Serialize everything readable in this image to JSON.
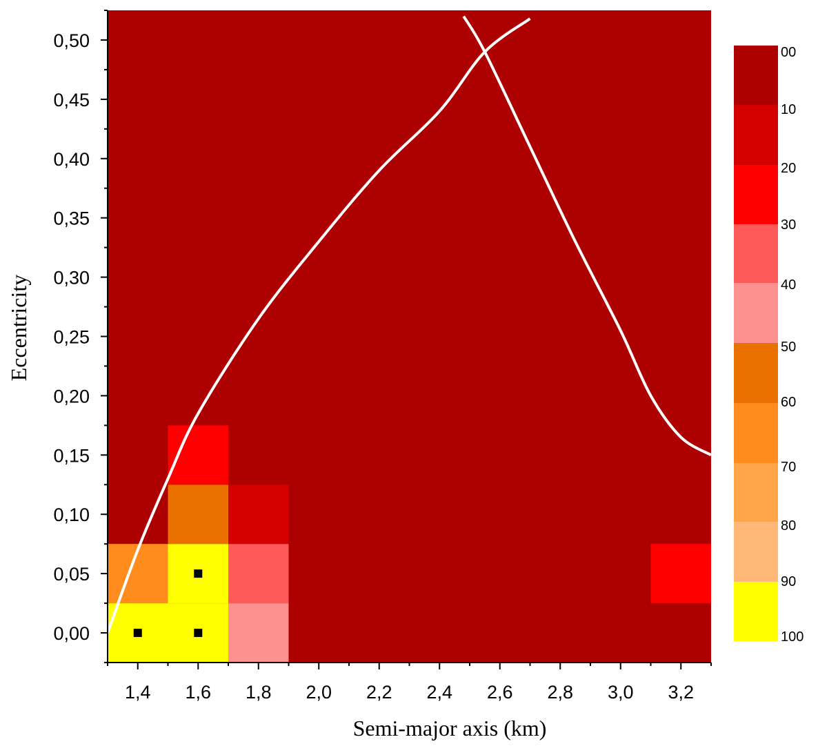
{
  "chart_data": {
    "type": "heatmap",
    "title": "",
    "xlabel": "Semi-major  axis  (km)",
    "ylabel": "Eccentricity",
    "xlim": [
      1.3,
      3.3
    ],
    "ylim": [
      -0.025,
      0.525
    ],
    "x_ticks": [
      1.4,
      1.6,
      1.8,
      2.0,
      2.2,
      2.4,
      2.6,
      2.8,
      3.0,
      3.2
    ],
    "x_tick_labels": [
      "1,4",
      "1,6",
      "1,8",
      "2,0",
      "2,2",
      "2,4",
      "2,6",
      "2,8",
      "3,0",
      "3,2"
    ],
    "y_ticks": [
      0.0,
      0.05,
      0.1,
      0.15,
      0.2,
      0.25,
      0.3,
      0.35,
      0.4,
      0.45,
      0.5
    ],
    "y_tick_labels": [
      "0,00",
      "0,05",
      "0,10",
      "0,15",
      "0,20",
      "0,25",
      "0,30",
      "0,35",
      "0,40",
      "0,45",
      "0,50"
    ],
    "cell_size": {
      "dx": 0.2,
      "de": 0.05
    },
    "background_value": 5,
    "cells": [
      {
        "x": 1.4,
        "e": 0.0,
        "value": 95
      },
      {
        "x": 1.6,
        "e": 0.0,
        "value": 95
      },
      {
        "x": 1.8,
        "e": 0.0,
        "value": 45
      },
      {
        "x": 1.4,
        "e": 0.05,
        "value": 65
      },
      {
        "x": 1.6,
        "e": 0.05,
        "value": 95
      },
      {
        "x": 1.8,
        "e": 0.05,
        "value": 35
      },
      {
        "x": 1.6,
        "e": 0.1,
        "value": 55
      },
      {
        "x": 1.8,
        "e": 0.1,
        "value": 15
      },
      {
        "x": 1.6,
        "e": 0.15,
        "value": 25
      },
      {
        "x": 3.2,
        "e": 0.05,
        "value": 25
      }
    ],
    "markers": [
      {
        "x": 1.4,
        "e": 0.0
      },
      {
        "x": 1.6,
        "e": 0.0
      },
      {
        "x": 1.6,
        "e": 0.05
      }
    ],
    "curves": [
      {
        "color": "#ffffff",
        "points": [
          [
            1.3,
            0.0
          ],
          [
            1.4,
            0.07
          ],
          [
            1.5,
            0.13
          ],
          [
            1.6,
            0.185
          ],
          [
            1.8,
            0.265
          ],
          [
            2.0,
            0.33
          ],
          [
            2.2,
            0.39
          ],
          [
            2.4,
            0.44
          ],
          [
            2.55,
            0.49
          ],
          [
            2.7,
            0.518
          ]
        ]
      },
      {
        "color": "#ffffff",
        "points": [
          [
            2.48,
            0.52
          ],
          [
            2.55,
            0.49
          ],
          [
            2.7,
            0.41
          ],
          [
            2.85,
            0.33
          ],
          [
            3.0,
            0.255
          ],
          [
            3.1,
            0.2
          ],
          [
            3.2,
            0.165
          ],
          [
            3.3,
            0.15
          ]
        ]
      }
    ],
    "colorbar": {
      "labels": [
        "00",
        "10",
        "20",
        "30",
        "40",
        "50",
        "60",
        "70",
        "80",
        "90",
        "100"
      ],
      "colors": [
        "#ad0000",
        "#d40000",
        "#ff0000",
        "#ff5a5a",
        "#ff9090",
        "#ea7000",
        "#ff8c1c",
        "#ffa548",
        "#ffb878",
        "#ffff00"
      ]
    }
  }
}
